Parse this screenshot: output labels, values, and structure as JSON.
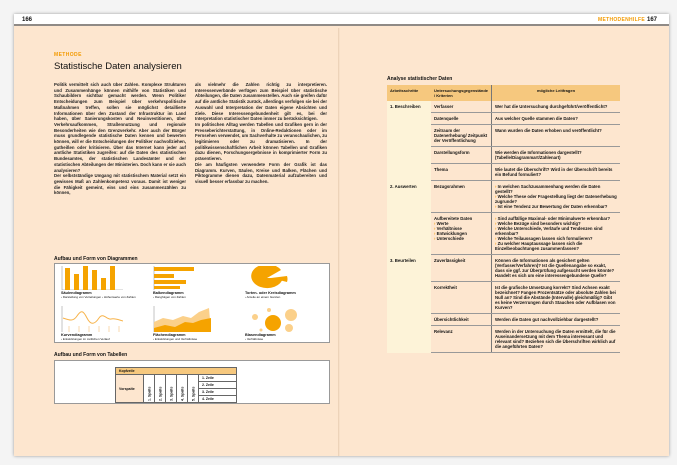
{
  "left_page": {
    "page_number": "166",
    "kicker": "METHODE",
    "title": "Statistische Daten analysieren",
    "column1": "Politik vermittelt sich auch über Zahlen. Komplexe Strukturen und Zusammenhänge können mithilfe von Statistiken und Schaubildern sichtbar gemacht werden. Wenn Politiker Entscheidungen zum Beispiel über verkehrspolitische Maßnahmen treffen, sollen sie möglichst detaillierte Informationen über den Zustand der Infrastruktur im Land haben, über Sanierungskosten und Neuinvestitionen, über Verkehrsaufkommen, Straßennutzung und regionale Besonderheiten wie den Grenzverkehr. Aber auch der Bürger muss grundlegende statistische Daten kennen und bewerten können, will er die Entscheidungen der Politiker nachvollziehen, gutheißen oder kritisieren. Über das Internet kann jeder auf amtliche Statistiken zugreifen: auf die Daten des statistischen Bundesamtes, der statistischen Landesämter und der statistischen Abteilungen der Ministerien. Doch kann er sie auch analysieren?\nDer selbstständige Umgang mit statistischem Material setzt ein gewisses Maß an Zahlenkompetenz voraus. Damit ist weniger die Fähigkeit gemeint, eins und eins zusammenzählen zu können,",
    "column2": "als vielmehr die Zahlen richtig zu interpretieren. Interessenverbände verfügen zum Beispiel über statistische Abteilungen, die Daten zusammenstellen. Auch sie greifen dafür auf die amtliche Statistik zurück, allerdings verfolgen sie bei der Auswahl und Interpretation der Daten eigene Absichten und Ziele. Diese Interessengebundenheit gilt es, bei der Interpretation statistischer Daten immer zu berücksichtigen.\nIm politischen Alltag werden Tabellen und Grafiken gern in der Presseberichterstattung, in Online-Redaktionen oder im Fernsehen verwendet, um Sachverhalte zu veranschaulichen, zu legitimieren oder zu dramatisieren. In der politikwissenschaftlichen Arbeit können Tabellen und Grafiken dazu dienen, Forschungsergebnisse in komprimierter Form zu präsentieren.\nDie am häufigsten verwendete Form der Grafik ist das Diagramm. Kurven, Säulen, Kreise und Balken, Flächen und Piktogramme dienen dazu, Datenmaterial aufzubereiten und visuell besser erfassbar zu machen.",
    "diagrams_heading": "Aufbau und Form von Diagrammen",
    "diagrams": [
      {
        "name": "Säulendiagramm",
        "desc": "› Darstellung von Verteilungen › Höhenwerte von Zahlen"
      },
      {
        "name": "Balkendiagramm",
        "desc": "› Rangfolgen von Zahlen"
      },
      {
        "name": "Torten- oder Kreisdiagramm",
        "desc": "› Anteile an einem Ganzen"
      },
      {
        "name": "Kurvendiagramm",
        "desc": "› Entwicklungen im zeitlichen Verlauf"
      },
      {
        "name": "Flächendiagramm",
        "desc": "› Entwicklungen und Verhältnisse"
      },
      {
        "name": "Blasendiagramm",
        "desc": "› Verhältnisse"
      }
    ],
    "tables_heading": "Aufbau und Form von Tabellen",
    "table_example": {
      "header": "Kopfzeile",
      "vorspalte": "Vorspalte",
      "columns": [
        "1. Spalte",
        "2. Spalte",
        "3. Spalte",
        "4. Spalte",
        "5. Spalte"
      ],
      "rows": [
        "1. Zeile",
        "2. Zeile",
        "3. Zeile",
        "4. Zeile"
      ]
    }
  },
  "right_page": {
    "page_number": "167",
    "section": "METHODENHILFE",
    "title": "Analyse statistischer Daten",
    "headers": [
      "Arbeitsschritte",
      "Untersuchungsgegenstände / Kriterien",
      "mögliche Leitfragen"
    ],
    "rows": [
      {
        "step": "1. Beschreiben",
        "criterion": "Verfasser",
        "questions": [
          "Wer hat die Untersuchung durchgeführt/veröffentlicht?"
        ]
      },
      {
        "step": "",
        "criterion": "Datenquelle",
        "questions": [
          "Aus welcher Quelle stammen die Daten?"
        ]
      },
      {
        "step": "",
        "criterion": "Zeitraum der Datenerhebung/ Zeitpunkt der Veröffentlichung",
        "questions": [
          "Wann wurden die Daten erhoben und veröffentlicht?"
        ]
      },
      {
        "step": "",
        "criterion": "Darstellungsform",
        "questions": [
          "Wie werden die Informationen dargestellt? (Tabelle/Diagrammart/Zahlenart)"
        ]
      },
      {
        "step": "",
        "criterion": "Thema",
        "questions": [
          "Wie lautet die Überschrift? Wird in der Überschrift bereits ein Befund formuliert?"
        ]
      },
      {
        "step": "2. Auswerten",
        "criterion": "Bezugsrahmen",
        "bullets": [
          "In welchen Sachzusammenhang werden die Daten gestellt?",
          "Welche These oder Fragestellung liegt der Datenerhebung zugrunde?",
          "Ist eine Tendenz zur Bewertung der Daten erkennbar?"
        ]
      },
      {
        "step": "",
        "criterion": "Aufbereitete Daten",
        "sub": [
          "Werte",
          "Verhältnisse",
          "Entwicklungen",
          "Unterschiede"
        ],
        "bullets": [
          "Sind auffällige Maximal- oder Minimalwerte erkennbar?",
          "Welche Bezüge sind besonders wichtig?",
          "Welche Unterschiede, Verläufe und Tendenzen sind erkennbar?",
          "Welche Teilaussagen lassen sich formulieren?",
          "Zu welcher Hauptaussage lassen sich die Einzelbeobachtungen zusammenfassen?"
        ]
      },
      {
        "step": "3. Beurteilen",
        "criterion": "Zuverlässigkeit",
        "questions": [
          "Können die Informationen als gesichert gelten (Verfasser/Verfahren)? Ist die Quellenangabe so exakt, dass sie ggf. zur Überprüfung aufgesucht werden könnte? Handelt es sich um eine interessengebundene Quelle?"
        ]
      },
      {
        "step": "",
        "criterion": "Korrektheit",
        "questions": [
          "Ist die grafische Umsetzung korrekt? Sind Achsen exakt bezeichnet? Fangen Prozentsätze oder absolute Zahlen bei Null an? Sind die Abstände (Intervalle) gleichmäßig? Gibt es keine Verzerrungen durch Stauchen oder Aufblasen von Kurven?"
        ]
      },
      {
        "step": "",
        "criterion": "Übersichtlichkeit",
        "questions": [
          "Werden die Daten gut nachvollziehbar dargestellt?"
        ]
      },
      {
        "step": "",
        "criterion": "Relevanz",
        "questions": [
          "Werden in der Untersuchung die Daten ermittelt, die für die Auseinandersetzung mit dem Thema interessant und relevant sind? Beziehen sich die Überschriften wirklich auf die angeführten Daten?"
        ]
      }
    ]
  },
  "colors": {
    "accent": "#f39a00",
    "background": "#fde6cf",
    "table_header": "#f6c87e"
  }
}
